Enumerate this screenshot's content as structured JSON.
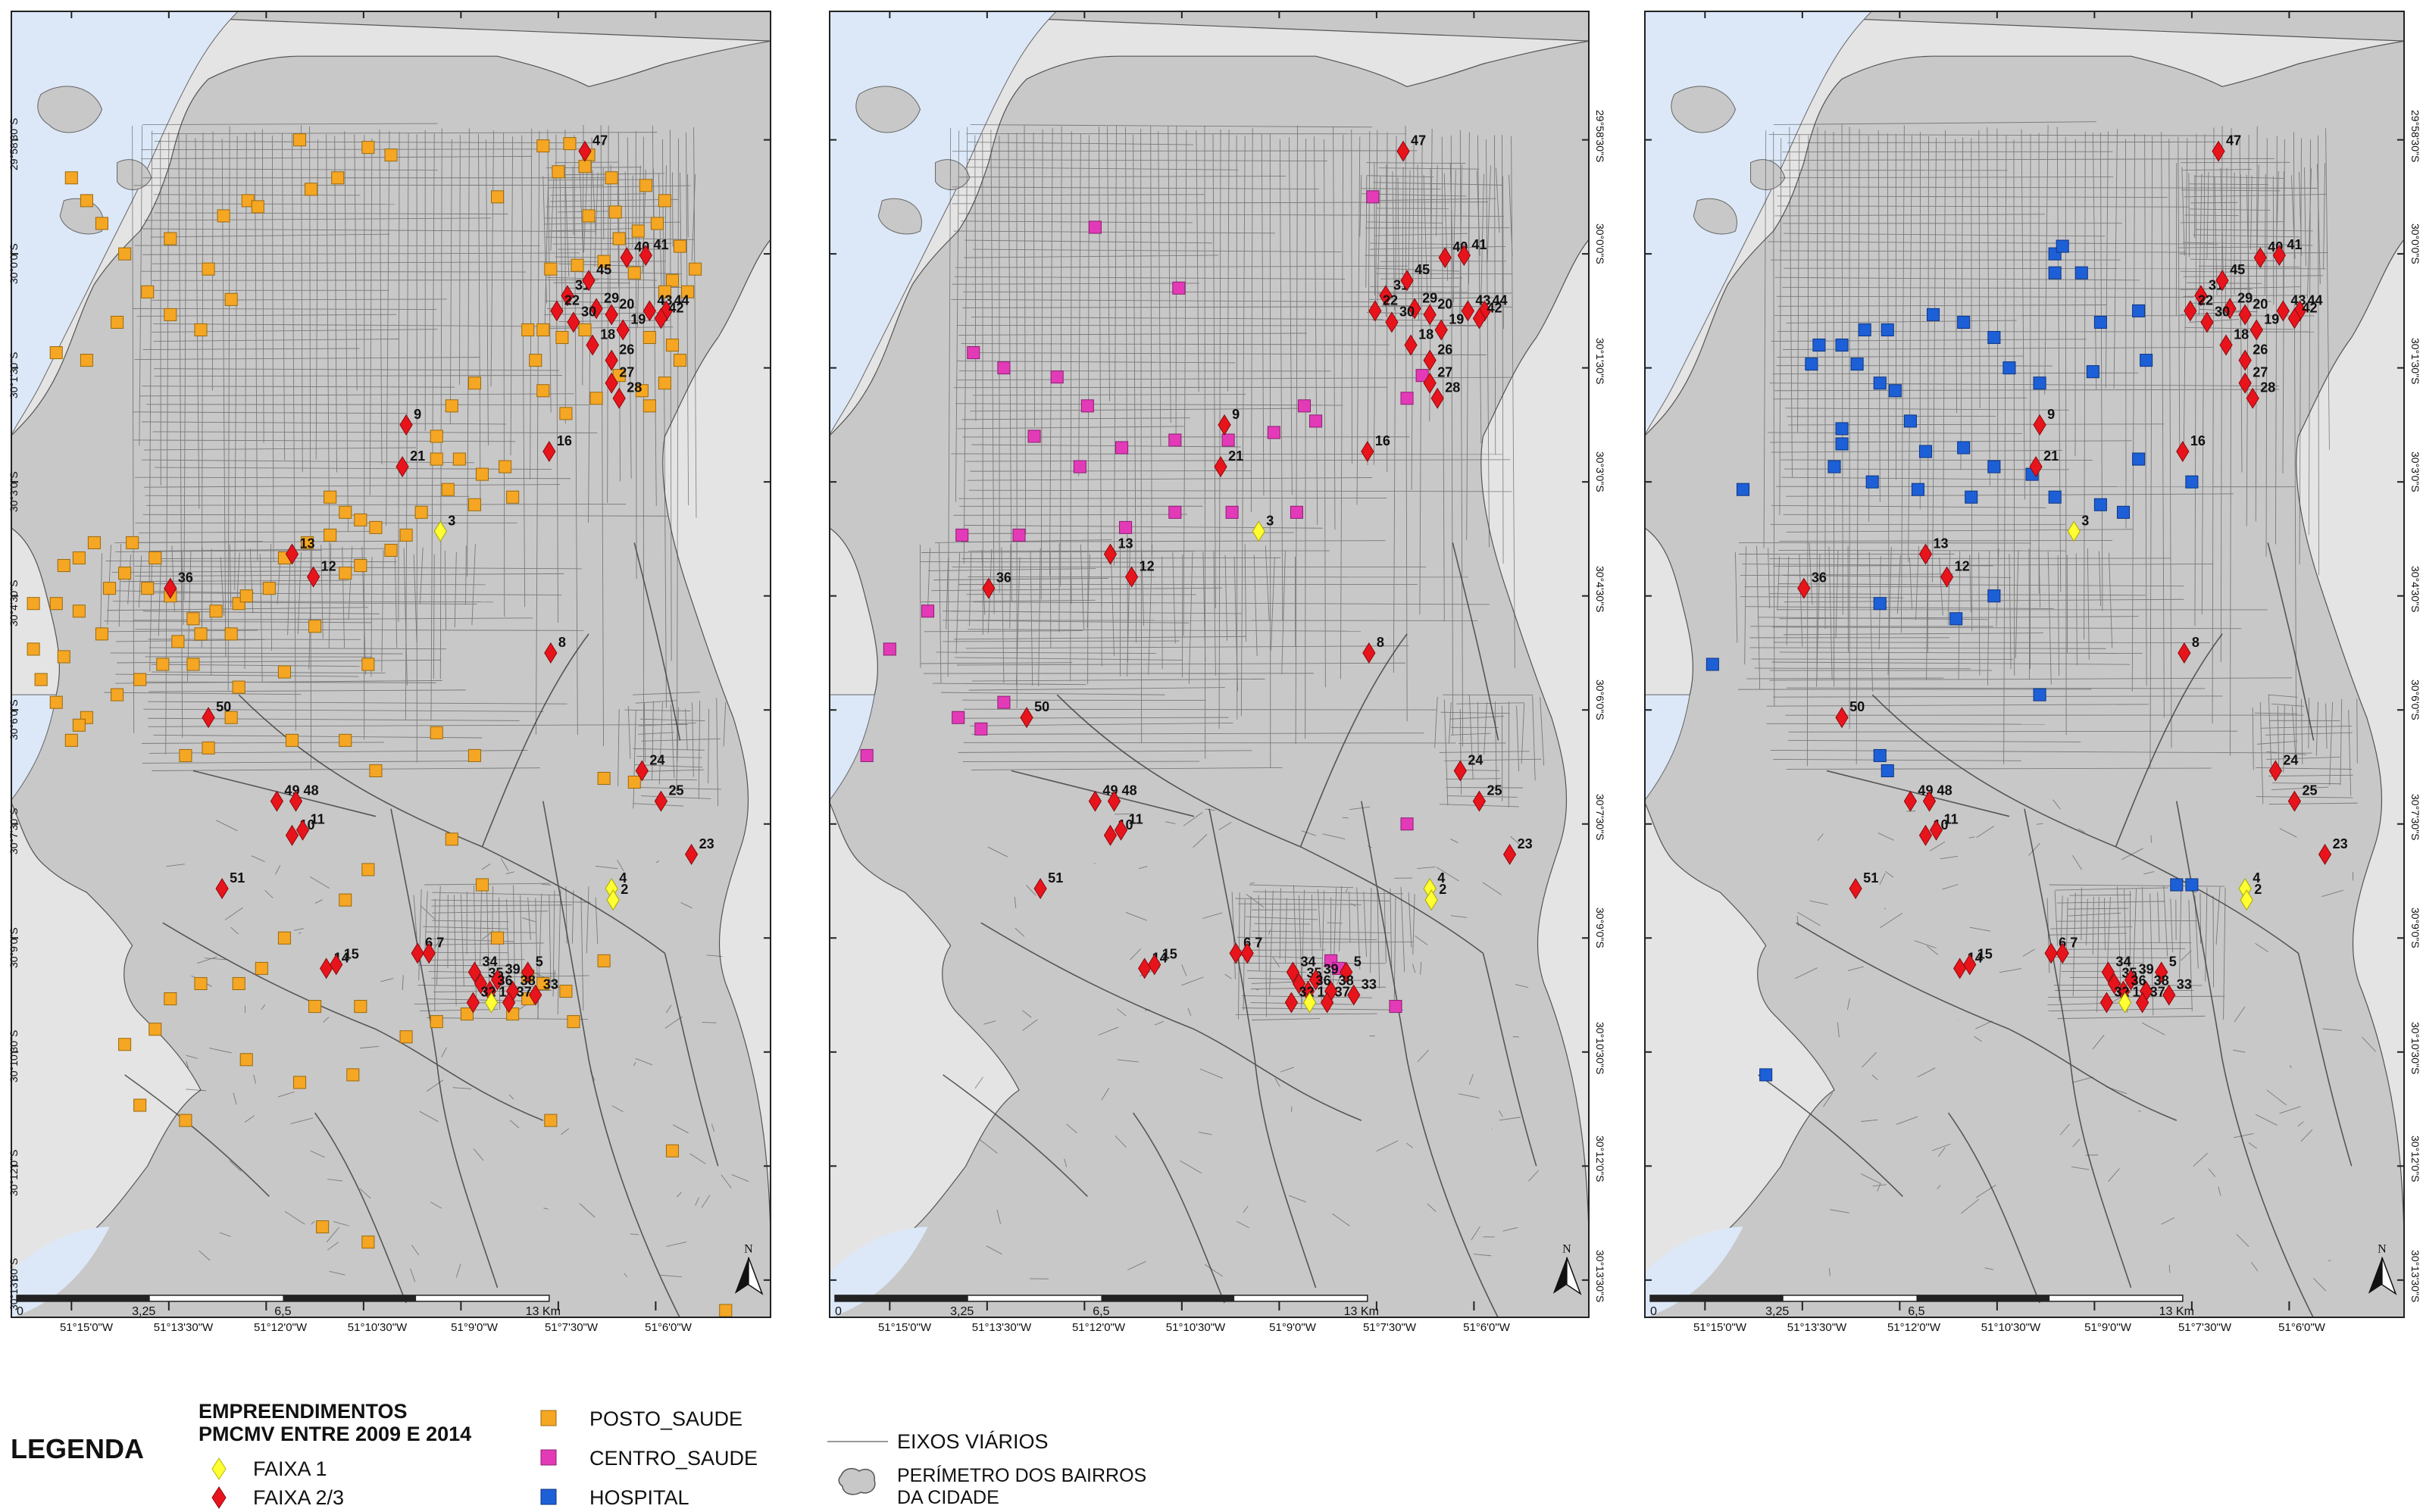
{
  "panels": [
    {
      "id": "posto",
      "lon_labels": [
        "51°15'0\"W",
        "51°13'30\"W",
        "51°12'0\"W",
        "51°10'30\"W",
        "51°9'0\"W",
        "51°7'30\"W",
        "51°6'0\"W"
      ],
      "lat_labels": [
        "29°58'30\"S",
        "30°0'0\"S",
        "30°1'30\"S",
        "30°3'0\"S",
        "30°4'30\"S",
        "30°6'0\"S",
        "30°7'30\"S",
        "30°9'0\"S",
        "30°10'30\"S",
        "30°12'0\"S",
        "30°13'30\"S"
      ],
      "scale_labels": [
        "0",
        "3,25",
        "6,5",
        "13 Km"
      ],
      "north": "N",
      "facility_class": "POSTO_SAUDE"
    },
    {
      "id": "centro",
      "lon_labels": [
        "51°15'0\"W",
        "51°13'30\"W",
        "51°12'0\"W",
        "51°10'30\"W",
        "51°9'0\"W",
        "51°7'30\"W",
        "51°6'0\"W"
      ],
      "lat_labels": [
        "29°58'30\"S",
        "30°0'0\"S",
        "30°1'30\"S",
        "30°3'0\"S",
        "30°4'30\"S",
        "30°6'0\"S",
        "30°7'30\"S",
        "30°9'0\"S",
        "30°10'30\"S",
        "30°12'0\"S",
        "30°13'30\"S"
      ],
      "scale_labels": [
        "0",
        "3,25",
        "6,5",
        "13 Km"
      ],
      "north": "N",
      "facility_class": "CENTRO_SAUDE"
    },
    {
      "id": "hospital",
      "lon_labels": [
        "51°15'0\"W",
        "51°13'30\"W",
        "51°12'0\"W",
        "51°10'30\"W",
        "51°9'0\"W",
        "51°7'30\"W",
        "51°6'0\"W"
      ],
      "lat_labels": [
        "29°58'30\"S",
        "30°0'0\"S",
        "30°1'30\"S",
        "30°3'0\"S",
        "30°4'30\"S",
        "30°6'0\"S",
        "30°7'30\"S",
        "30°9'0\"S",
        "30°10'30\"S",
        "30°12'0\"S",
        "30°13'30\"S"
      ],
      "scale_labels": [
        "0",
        "3,25",
        "6,5",
        "13 Km"
      ],
      "north": "N",
      "facility_class": "HOSPITAL"
    }
  ],
  "projects": {
    "faixa1": [
      "3",
      "4",
      "2",
      "1"
    ],
    "faixa23": [
      "47",
      "31",
      "45",
      "40",
      "41",
      "43",
      "44",
      "29",
      "20",
      "19",
      "42",
      "22",
      "30",
      "18",
      "26",
      "27",
      "28",
      "16",
      "9",
      "21",
      "13",
      "12",
      "36",
      "8",
      "50",
      "49",
      "48",
      "10",
      "11",
      "24",
      "25",
      "23",
      "51",
      "14",
      "15",
      "6",
      "7",
      "34",
      "35",
      "39",
      "5",
      "38",
      "36",
      "33",
      "32",
      "37"
    ]
  },
  "legend": {
    "title": "LEGENDA",
    "projects_heading_line1": "EMPREENDIMENTOS",
    "projects_heading_line2": "PMCMV ENTRE 2009 E 2014",
    "faixa1": "FAIXA 1",
    "faixa23": "FAIXA 2/3",
    "posto": "POSTO_SAUDE",
    "centro": "CENTRO_SAUDE",
    "hospital": "HOSPITAL",
    "roads": "EIXOS VIÁRIOS",
    "perimeter_line1": "PERÍMETRO DOS BAIRROS",
    "perimeter_line2": "DA CIDADE"
  },
  "colors": {
    "water": "#dce8f8",
    "land": "#c8c8c8",
    "outside": "#e4e4e4",
    "roads": "#3a3a3a",
    "faixa1": "#ffff33",
    "faixa23": "#e8141c",
    "posto": "#f5a623",
    "centro": "#e33ab8",
    "hospital": "#1d5fd6"
  }
}
